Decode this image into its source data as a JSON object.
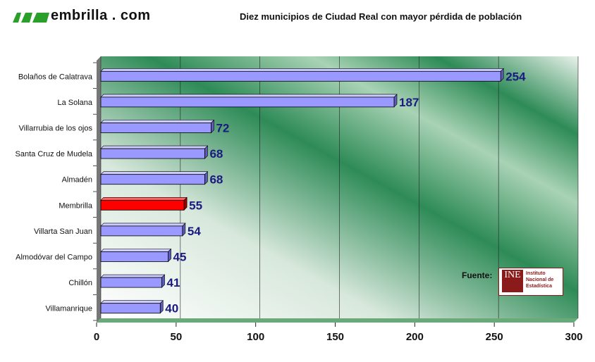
{
  "header": {
    "logo_text": "embrilla . com",
    "logo_icon": "membrilla-m-logo-icon"
  },
  "chart_data": {
    "type": "bar",
    "orientation": "horizontal",
    "title": "Diez municipios de Ciudad Real con mayor pérdida de población",
    "categories": [
      "Bolaños de Calatrava",
      "La Solana",
      "Villarrubia de los ojos",
      "Santa Cruz de Mudela",
      "Almadén",
      "Membrilla",
      "Villarta San Juan",
      "Almodóvar del Campo",
      "Chillón",
      "Villamanrique"
    ],
    "values": [
      254,
      187,
      72,
      68,
      68,
      55,
      54,
      45,
      41,
      40
    ],
    "highlight": "Membrilla",
    "xlim": [
      0,
      300
    ],
    "xticks": [
      0,
      50,
      100,
      150,
      200,
      250,
      300
    ],
    "grid": true,
    "legend": "none",
    "colors": {
      "bar": "#9999ff",
      "highlight": "#ff0000",
      "label": "#1a1a80",
      "background": "#2e8b57"
    }
  },
  "source": {
    "label": "Fuente:",
    "mark": "INE",
    "name": "Instituto Nacional de Estadística"
  }
}
